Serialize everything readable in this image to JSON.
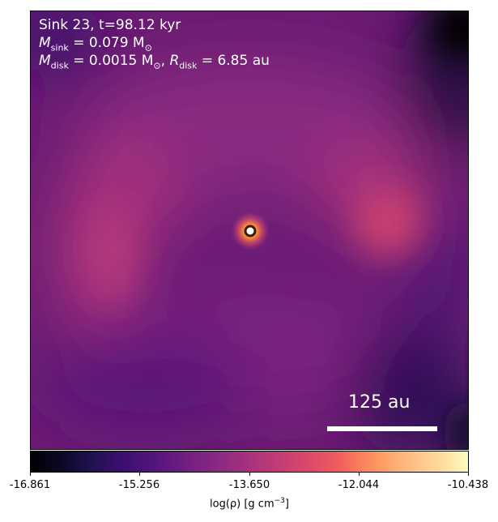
{
  "panel": {
    "line1": "Sink 23, t=98.12 kyr",
    "m_sink_symbol": "M",
    "m_sink_sub": "sink",
    "m_sink_value": " = 0.079 M",
    "m_sink_unit_sub": "⊙",
    "m_disk_symbol": "M",
    "m_disk_sub": "disk",
    "m_disk_value": " = 0.0015 M",
    "m_disk_unit_sub": "⊙",
    "r_disk_prefix": ", ",
    "r_disk_symbol": "R",
    "r_disk_sub": "disk",
    "r_disk_value": " = 6.85 au",
    "scale_label": "125 au"
  },
  "colorbar": {
    "ticks": [
      "-16.861",
      "-15.256",
      "-13.650",
      "-12.044",
      "-10.438"
    ],
    "label_prefix": "log(ρ) [g cm",
    "label_exp": "−3",
    "label_suffix": "]",
    "colormap": "magma"
  }
}
